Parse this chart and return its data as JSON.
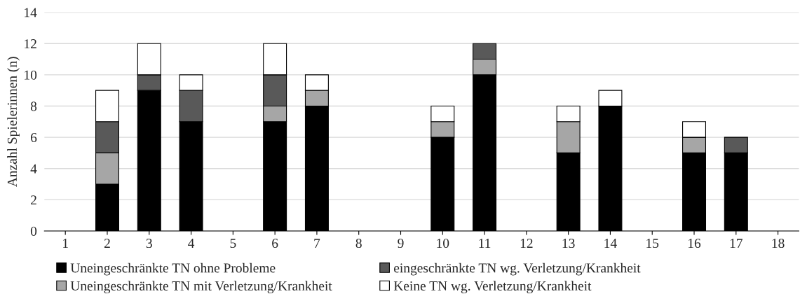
{
  "chart_data": {
    "type": "bar",
    "stacked": true,
    "ylabel": "Anzahl Spielerinnen (n)",
    "categories": [
      "1",
      "2",
      "3",
      "4",
      "5",
      "6",
      "7",
      "8",
      "9",
      "10",
      "11",
      "12",
      "13",
      "14",
      "15",
      "16",
      "17",
      "18"
    ],
    "series": [
      {
        "name": "Uneingeschränkte TN ohne Probleme",
        "color": "#000000",
        "values": [
          null,
          3,
          9,
          7,
          null,
          7,
          8,
          null,
          null,
          6,
          10,
          null,
          5,
          8,
          null,
          5,
          5,
          null
        ]
      },
      {
        "name": "Uneingeschränkte TN mit Verletzung/Krankheit",
        "color": "#a6a6a6",
        "values": [
          null,
          2,
          null,
          null,
          null,
          1,
          1,
          null,
          null,
          1,
          1,
          null,
          2,
          null,
          null,
          1,
          null,
          null
        ]
      },
      {
        "name": "eingeschränkte TN wg. Verletzung/Krankheit",
        "color": "#595959",
        "values": [
          null,
          2,
          1,
          2,
          null,
          2,
          null,
          null,
          null,
          null,
          1,
          null,
          null,
          null,
          null,
          null,
          1,
          null
        ]
      },
      {
        "name": "Keine TN wg. Verletzung/Krankheit",
        "color": "#ffffff",
        "values": [
          null,
          2,
          2,
          1,
          null,
          2,
          1,
          null,
          null,
          1,
          null,
          null,
          1,
          1,
          null,
          1,
          null,
          null
        ]
      }
    ],
    "ylim": [
      0,
      14
    ],
    "yticks": [
      0,
      2,
      4,
      6,
      8,
      10,
      12,
      14
    ],
    "grid": "y",
    "legend": "bottom"
  }
}
